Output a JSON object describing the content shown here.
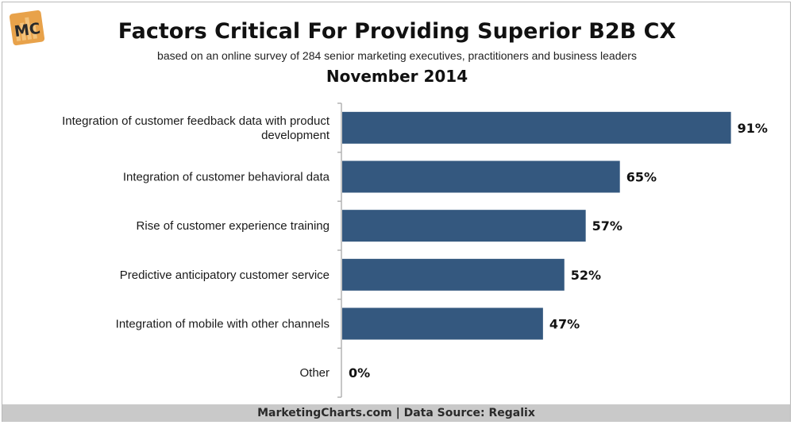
{
  "header": {
    "logo_text": "MC",
    "title": "Factors Critical For Providing Superior B2B CX",
    "subtitle": "based on an online survey of 284 senior marketing executives, practitioners and business leaders",
    "date": "November 2014"
  },
  "footer": {
    "source": "MarketingCharts.com | Data Source: Regalix"
  },
  "colors": {
    "bar": "#34587f",
    "axis": "#b3b3b3",
    "logo_bg": "#e8a24a"
  },
  "chart_data": {
    "type": "bar",
    "orientation": "horizontal",
    "categories": [
      [
        "Integration of customer feedback data with product",
        "development"
      ],
      [
        "Integration of customer behavioral data"
      ],
      [
        "Rise of customer experience training"
      ],
      [
        "Predictive anticipatory customer service"
      ],
      [
        "Integration of mobile with other channels"
      ],
      [
        "Other"
      ]
    ],
    "values": [
      91,
      65,
      57,
      52,
      47,
      0
    ],
    "value_labels": [
      "91%",
      "65%",
      "57%",
      "52%",
      "47%",
      "0%"
    ],
    "xlim": [
      0,
      100
    ],
    "grid": false,
    "legend": "none"
  }
}
